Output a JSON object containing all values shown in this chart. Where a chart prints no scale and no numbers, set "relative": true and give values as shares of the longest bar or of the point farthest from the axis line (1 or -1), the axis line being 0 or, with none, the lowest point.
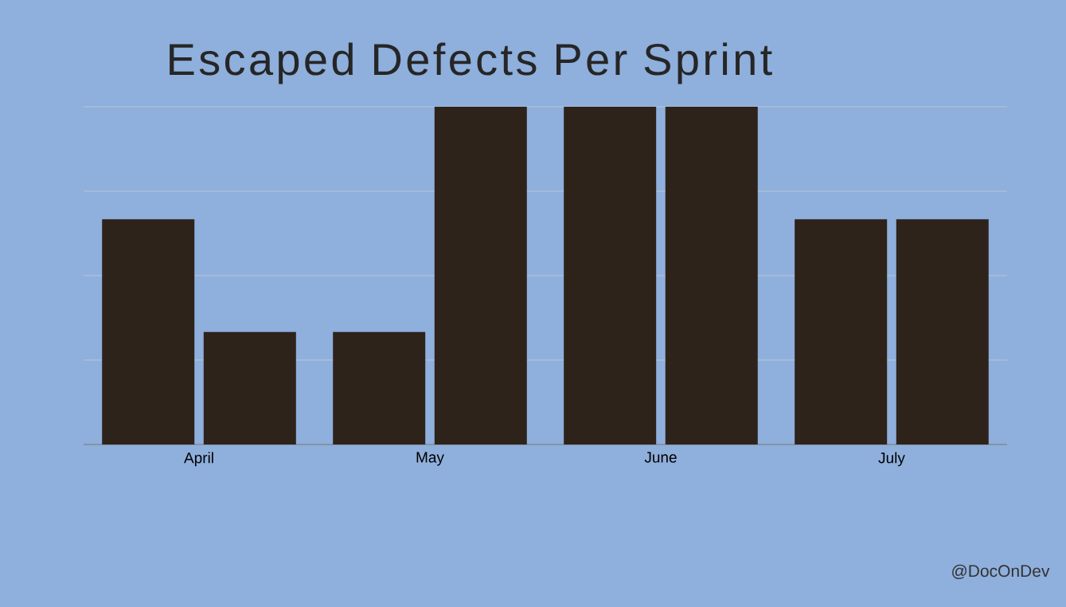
{
  "chart_data": {
    "type": "bar",
    "title": "Escaped Defects Per Sprint",
    "categories": [
      "April",
      "May",
      "June",
      "July"
    ],
    "series": [
      {
        "color": "#2e231b",
        "values": [
          0.667,
          0.333,
          1,
          0.667
        ]
      },
      {
        "color": "#2e231b",
        "values": [
          0.333,
          1,
          1,
          0.667
        ]
      }
    ],
    "relative": true,
    "grid": "y",
    "annotations": [
      "@DocOnDev"
    ]
  }
}
